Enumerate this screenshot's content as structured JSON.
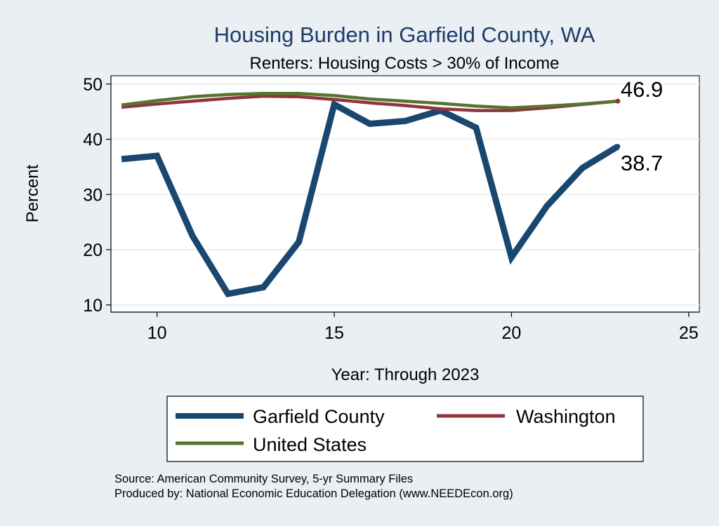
{
  "chart_data": {
    "type": "line",
    "title": "Housing Burden in Garfield County, WA",
    "subtitle": "Renters: Housing Costs > 30% of Income",
    "xlabel": "Year: Through 2023",
    "ylabel": "Percent",
    "xlim": [
      8.7,
      25.3
    ],
    "ylim": [
      8.7,
      51.5
    ],
    "xticks": [
      10,
      15,
      20,
      25
    ],
    "yticks": [
      10,
      20,
      30,
      40,
      50
    ],
    "grid": true,
    "legend_position": "bottom",
    "x": [
      9,
      10,
      11,
      12,
      13,
      14,
      15,
      16,
      17,
      18,
      19,
      20,
      21,
      22,
      23
    ],
    "series": [
      {
        "name": "Garfield County",
        "color": "#1a476f",
        "values": [
          36.4,
          37.0,
          22.5,
          12.0,
          13.2,
          21.4,
          46.3,
          42.8,
          43.3,
          45.2,
          42.1,
          18.6,
          27.9,
          34.8,
          38.7
        ],
        "end_label": "38.7"
      },
      {
        "name": "Washington",
        "color": "#90353b",
        "values": [
          45.8,
          46.4,
          46.9,
          47.4,
          47.8,
          47.7,
          47.2,
          46.6,
          46.1,
          45.5,
          45.2,
          45.2,
          45.7,
          46.3,
          46.9
        ],
        "end_label": "46.9"
      },
      {
        "name": "United States",
        "color": "#55752f",
        "values": [
          46.2,
          47.0,
          47.7,
          48.1,
          48.3,
          48.3,
          47.9,
          47.3,
          46.9,
          46.5,
          46.0,
          45.7,
          46.0,
          46.4,
          46.9
        ]
      }
    ]
  },
  "source_text": "Source: American Community Survey, 5-yr Summary Files",
  "produced_text": "Produced by: National Economic Education Delegation (www.NEEDEcon.org)"
}
